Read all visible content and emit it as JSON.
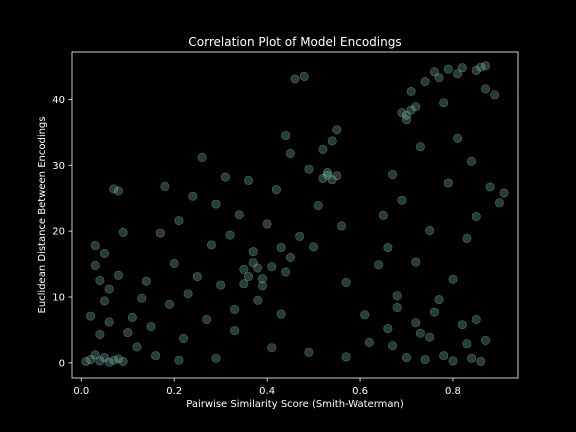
{
  "chart_data": {
    "type": "scatter",
    "title": "Correlation Plot of Model Encodings",
    "xlabel": "Pairwise Similarity Score (Smith-Waterman)",
    "ylabel": "Euclidean Distance Between Encodings",
    "xlim": [
      -0.02,
      0.94
    ],
    "ylim": [
      -2.3,
      47.2
    ],
    "xticks": [
      0.0,
      0.2,
      0.4,
      0.6,
      0.8
    ],
    "xtick_labels": [
      "0.0",
      "0.2",
      "0.4",
      "0.6",
      "0.8"
    ],
    "yticks": [
      0,
      10,
      20,
      30,
      40
    ],
    "ytick_labels": [
      "0",
      "10",
      "20",
      "30",
      "40"
    ],
    "grid": false,
    "background": "#000000",
    "marker_color": "#8dd3c7",
    "marker_alpha": 0.28,
    "series": [
      {
        "points": [
          [
            0.01,
            0.2
          ],
          [
            0.02,
            0.5
          ],
          [
            0.03,
            1.2
          ],
          [
            0.04,
            0.3
          ],
          [
            0.05,
            0.8
          ],
          [
            0.06,
            0.1
          ],
          [
            0.07,
            0.4
          ],
          [
            0.08,
            0.6
          ],
          [
            0.09,
            0.2
          ],
          [
            0.03,
            14.8
          ],
          [
            0.03,
            17.8
          ],
          [
            0.04,
            12.5
          ],
          [
            0.05,
            9.4
          ],
          [
            0.06,
            6.2
          ],
          [
            0.07,
            26.4
          ],
          [
            0.08,
            26.1
          ],
          [
            0.09,
            19.8
          ],
          [
            0.05,
            16.6
          ],
          [
            0.02,
            7.1
          ],
          [
            0.04,
            4.3
          ],
          [
            0.06,
            11.2
          ],
          [
            0.08,
            13.3
          ],
          [
            0.1,
            4.6
          ],
          [
            0.11,
            6.9
          ],
          [
            0.12,
            2.4
          ],
          [
            0.13,
            9.8
          ],
          [
            0.14,
            12.4
          ],
          [
            0.15,
            5.5
          ],
          [
            0.16,
            1.1
          ],
          [
            0.17,
            19.7
          ],
          [
            0.18,
            26.8
          ],
          [
            0.19,
            8.9
          ],
          [
            0.2,
            15.1
          ],
          [
            0.21,
            21.6
          ],
          [
            0.22,
            3.7
          ],
          [
            0.23,
            10.5
          ],
          [
            0.24,
            25.3
          ],
          [
            0.25,
            13.1
          ],
          [
            0.26,
            31.2
          ],
          [
            0.27,
            6.6
          ],
          [
            0.28,
            17.9
          ],
          [
            0.29,
            24.1
          ],
          [
            0.3,
            11.8
          ],
          [
            0.31,
            28.2
          ],
          [
            0.32,
            19.4
          ],
          [
            0.33,
            8.1
          ],
          [
            0.34,
            22.5
          ],
          [
            0.35,
            14.2
          ],
          [
            0.36,
            27.7
          ],
          [
            0.37,
            16.9
          ],
          [
            0.38,
            9.5
          ],
          [
            0.39,
            12.8
          ],
          [
            0.4,
            21.1
          ],
          [
            0.41,
            14.6
          ],
          [
            0.42,
            26.3
          ],
          [
            0.43,
            7.4
          ],
          [
            0.44,
            34.5
          ],
          [
            0.45,
            31.8
          ],
          [
            0.46,
            43.1
          ],
          [
            0.47,
            19.2
          ],
          [
            0.48,
            43.5
          ],
          [
            0.49,
            29.4
          ],
          [
            0.5,
            17.6
          ],
          [
            0.51,
            23.9
          ],
          [
            0.52,
            32.4
          ],
          [
            0.53,
            28.5
          ],
          [
            0.54,
            33.7
          ],
          [
            0.55,
            35.4
          ],
          [
            0.56,
            20.8
          ],
          [
            0.57,
            12.2
          ],
          [
            0.36,
            13.1
          ],
          [
            0.37,
            15.2
          ],
          [
            0.35,
            12.0
          ],
          [
            0.38,
            14.4
          ],
          [
            0.39,
            11.7
          ],
          [
            0.44,
            13.8
          ],
          [
            0.45,
            16.0
          ],
          [
            0.43,
            17.5
          ],
          [
            0.52,
            28.0
          ],
          [
            0.53,
            28.9
          ],
          [
            0.54,
            27.8
          ],
          [
            0.55,
            28.4
          ],
          [
            0.33,
            4.9
          ],
          [
            0.41,
            2.3
          ],
          [
            0.49,
            1.6
          ],
          [
            0.57,
            0.9
          ],
          [
            0.29,
            0.7
          ],
          [
            0.21,
            0.4
          ],
          [
            0.61,
            7.3
          ],
          [
            0.62,
            3.1
          ],
          [
            0.64,
            14.9
          ],
          [
            0.65,
            22.4
          ],
          [
            0.66,
            17.5
          ],
          [
            0.67,
            28.6
          ],
          [
            0.68,
            10.2
          ],
          [
            0.69,
            24.7
          ],
          [
            0.7,
            36.9
          ],
          [
            0.71,
            41.2
          ],
          [
            0.72,
            15.3
          ],
          [
            0.73,
            32.8
          ],
          [
            0.75,
            20.1
          ],
          [
            0.76,
            44.2
          ],
          [
            0.77,
            9.6
          ],
          [
            0.78,
            39.5
          ],
          [
            0.79,
            27.3
          ],
          [
            0.8,
            12.7
          ],
          [
            0.81,
            34.1
          ],
          [
            0.82,
            44.8
          ],
          [
            0.83,
            18.9
          ],
          [
            0.84,
            30.6
          ],
          [
            0.85,
            22.2
          ],
          [
            0.86,
            44.9
          ],
          [
            0.87,
            41.6
          ],
          [
            0.88,
            26.7
          ],
          [
            0.89,
            40.7
          ],
          [
            0.9,
            24.3
          ],
          [
            0.91,
            25.8
          ],
          [
            0.7,
            0.8
          ],
          [
            0.74,
            0.5
          ],
          [
            0.78,
            1.1
          ],
          [
            0.8,
            0.3
          ],
          [
            0.84,
            0.7
          ],
          [
            0.86,
            0.2
          ],
          [
            0.71,
            38.4
          ],
          [
            0.69,
            38.0
          ],
          [
            0.7,
            37.6
          ],
          [
            0.72,
            38.9
          ],
          [
            0.74,
            42.7
          ],
          [
            0.77,
            43.3
          ],
          [
            0.79,
            44.6
          ],
          [
            0.81,
            43.9
          ],
          [
            0.85,
            44.4
          ],
          [
            0.87,
            45.1
          ],
          [
            0.66,
            5.2
          ],
          [
            0.67,
            2.6
          ],
          [
            0.68,
            8.4
          ],
          [
            0.72,
            6.1
          ],
          [
            0.73,
            4.5
          ],
          [
            0.75,
            3.9
          ],
          [
            0.76,
            7.7
          ],
          [
            0.82,
            5.8
          ],
          [
            0.83,
            2.9
          ],
          [
            0.85,
            6.6
          ],
          [
            0.87,
            3.4
          ]
        ]
      }
    ]
  }
}
